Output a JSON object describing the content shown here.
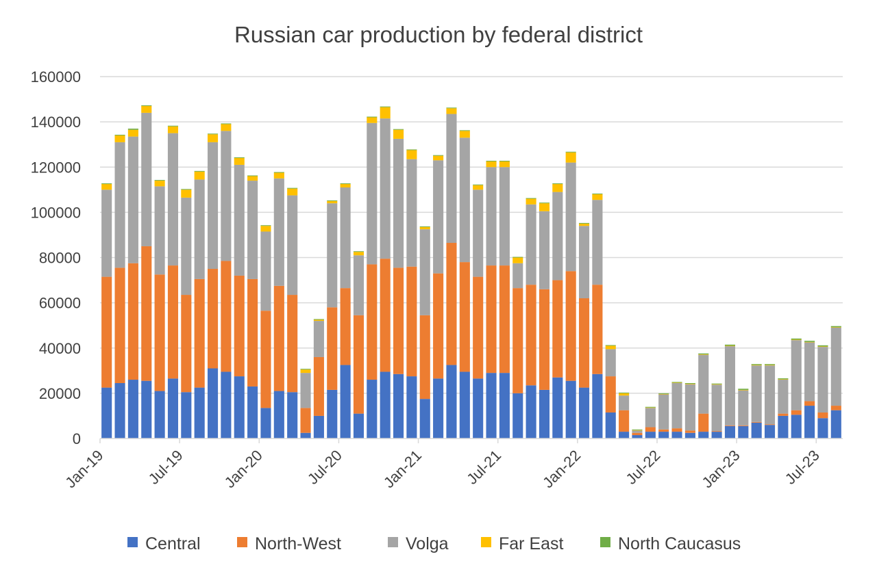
{
  "chart_data": {
    "type": "bar",
    "stacked": true,
    "title": "Russian car production by federal district",
    "xlabel": "",
    "ylabel": "",
    "ylim": [
      0,
      160000
    ],
    "yticks": [
      0,
      20000,
      40000,
      60000,
      80000,
      100000,
      120000,
      140000,
      160000
    ],
    "grid": true,
    "legend_position": "bottom",
    "categories": [
      "Jan-19",
      "Feb-19",
      "Mar-19",
      "Apr-19",
      "May-19",
      "Jun-19",
      "Jul-19",
      "Aug-19",
      "Sep-19",
      "Oct-19",
      "Nov-19",
      "Dec-19",
      "Jan-20",
      "Feb-20",
      "Mar-20",
      "Apr-20",
      "May-20",
      "Jun-20",
      "Jul-20",
      "Aug-20",
      "Sep-20",
      "Oct-20",
      "Nov-20",
      "Dec-20",
      "Jan-21",
      "Feb-21",
      "Mar-21",
      "Apr-21",
      "May-21",
      "Jun-21",
      "Jul-21",
      "Aug-21",
      "Sep-21",
      "Oct-21",
      "Nov-21",
      "Dec-21",
      "Jan-22",
      "Feb-22",
      "Mar-22",
      "Apr-22",
      "May-22",
      "Jun-22",
      "Jul-22",
      "Aug-22",
      "Sep-22",
      "Oct-22",
      "Nov-22",
      "Dec-22",
      "Jan-23",
      "Feb-23",
      "Mar-23",
      "Apr-23",
      "May-23",
      "Jun-23",
      "Jul-23",
      "Aug-23"
    ],
    "xtick_labels": [
      "Jan-19",
      "Jul-19",
      "Jan-20",
      "Jul-20",
      "Jan-21",
      "Jul-21",
      "Jan-22",
      "Jul-22",
      "Jan-23",
      "Jul-23"
    ],
    "series": [
      {
        "name": "Central",
        "color": "#4472c4",
        "values": [
          22500,
          24500,
          26000,
          25500,
          21000,
          26500,
          20500,
          22500,
          31000,
          29500,
          27500,
          23000,
          13500,
          21000,
          20500,
          2500,
          10000,
          21500,
          32500,
          11000,
          26000,
          29500,
          28500,
          27500,
          17500,
          26500,
          32500,
          29500,
          26500,
          29000,
          29000,
          20000,
          23500,
          21500,
          27000,
          25500,
          22500,
          28500,
          11500,
          3000,
          1500,
          3000,
          3000,
          3000,
          2500,
          3000,
          3000,
          5500,
          5500,
          7000,
          6000,
          10000,
          10500,
          14500,
          9000,
          12500
        ]
      },
      {
        "name": "North-West",
        "color": "#ed7d31",
        "values": [
          49000,
          51000,
          51500,
          59500,
          51500,
          50000,
          43000,
          48000,
          44000,
          49000,
          44500,
          47500,
          43000,
          46500,
          43000,
          11000,
          26000,
          36500,
          34000,
          43500,
          51000,
          50000,
          47000,
          48500,
          37000,
          46500,
          54000,
          48500,
          45000,
          47500,
          47500,
          46500,
          44500,
          44500,
          43000,
          48500,
          39500,
          39500,
          16000,
          9500,
          1000,
          2000,
          1000,
          1500,
          1000,
          8000,
          300,
          300,
          300,
          300,
          300,
          1000,
          2000,
          2000,
          2500,
          2000
        ]
      },
      {
        "name": "Volga",
        "color": "#a5a5a5",
        "values": [
          38500,
          55500,
          56000,
          59000,
          39000,
          58500,
          43000,
          44000,
          56000,
          57500,
          49000,
          43500,
          35000,
          47500,
          44000,
          15500,
          16000,
          46000,
          44500,
          26500,
          62500,
          62000,
          57000,
          47500,
          38000,
          50000,
          57000,
          55000,
          38500,
          43500,
          43500,
          11000,
          35500,
          34500,
          39000,
          48000,
          32000,
          37500,
          12000,
          6500,
          1000,
          8500,
          15500,
          20000,
          20500,
          26000,
          20500,
          35000,
          15500,
          25000,
          26000,
          15000,
          31000,
          26000,
          29000,
          34500
        ]
      },
      {
        "name": "Far East",
        "color": "#ffc000",
        "values": [
          2500,
          3000,
          3000,
          3000,
          2500,
          3000,
          3500,
          3500,
          3500,
          3000,
          3000,
          2000,
          2500,
          2500,
          3000,
          1500,
          500,
          1000,
          1500,
          1500,
          2500,
          5000,
          4000,
          4000,
          1000,
          2000,
          2500,
          3000,
          2000,
          2500,
          2500,
          2500,
          2500,
          3500,
          3500,
          4500,
          1000,
          2500,
          1500,
          1000,
          200,
          200,
          200,
          200,
          200,
          200,
          200,
          200,
          200,
          200,
          200,
          200,
          200,
          200,
          200,
          200
        ]
      },
      {
        "name": "North Caucasus",
        "color": "#70ad47",
        "values": [
          300,
          300,
          500,
          300,
          300,
          300,
          300,
          300,
          300,
          300,
          300,
          300,
          300,
          300,
          300,
          300,
          300,
          300,
          300,
          300,
          300,
          300,
          300,
          300,
          300,
          300,
          300,
          300,
          300,
          300,
          300,
          300,
          300,
          300,
          300,
          300,
          300,
          300,
          300,
          300,
          300,
          300,
          300,
          300,
          300,
          400,
          300,
          500,
          500,
          400,
          400,
          400,
          500,
          500,
          500,
          500
        ]
      }
    ]
  }
}
